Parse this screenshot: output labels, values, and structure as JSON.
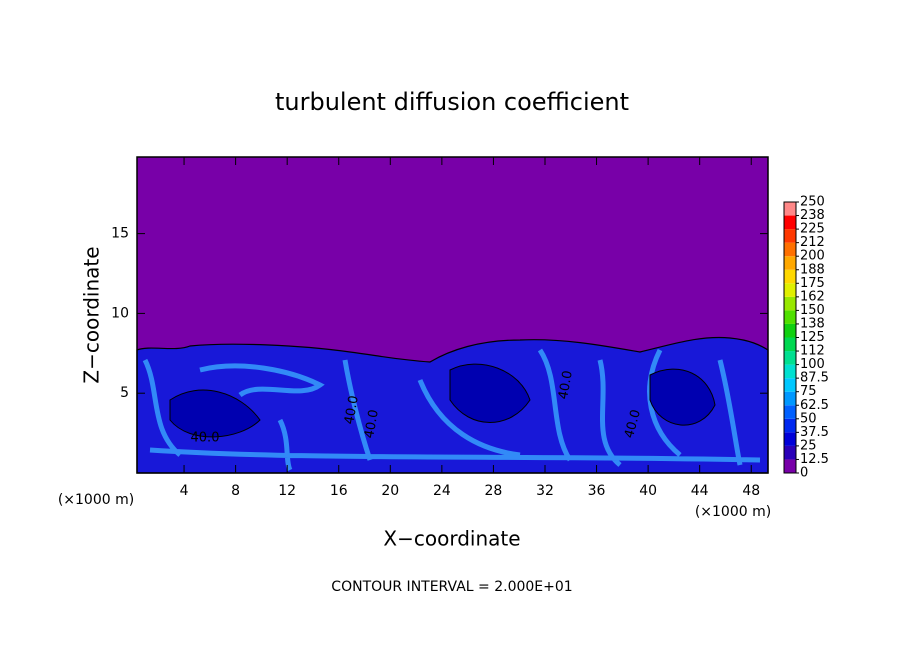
{
  "chart_data": {
    "type": "contour",
    "title": "turbulent diffusion coefficient",
    "x_label": "X−coordinate",
    "y_label": "Z−coordinate",
    "x_unit": "(×1000 m)",
    "x_unit_right": "(×1000 m)",
    "footnote": "CONTOUR INTERVAL = 2.000E+01",
    "contour_labels": [
      "40.0",
      "40.0",
      "40.0",
      "40.0",
      "40.0"
    ],
    "xlim": [
      0.35,
      49.3
    ],
    "ylim": [
      0,
      19.8
    ],
    "xticks": [
      4,
      8,
      12,
      16,
      20,
      24,
      28,
      32,
      36,
      40,
      44,
      48
    ],
    "yticks": [
      5,
      10,
      15
    ],
    "colorbar": {
      "levels": [
        0,
        12.5,
        25,
        37.5,
        50,
        62.5,
        75,
        87.5,
        100,
        {
          "value": 112.5,
          "label": "112"
        },
        125,
        {
          "value": 137.5,
          "label": "138"
        },
        150,
        {
          "value": 162.5,
          "label": "162"
        },
        175,
        {
          "value": 187.5,
          "label": "188"
        },
        200,
        {
          "value": 212.5,
          "label": "212"
        },
        225,
        {
          "value": 237.5,
          "label": "238"
        },
        250
      ],
      "colors": [
        "#7800a8",
        "#2a00b8",
        "#0000d8",
        "#0028f0",
        "#0060ff",
        "#0098ff",
        "#00c8ff",
        "#00e0d0",
        "#00e090",
        "#00d850",
        "#10d010",
        "#50e000",
        "#98e800",
        "#e0f000",
        "#ffd800",
        "#ffa800",
        "#ff7000",
        "#ff3800",
        "#ff0000",
        "#ff8888"
      ]
    }
  }
}
